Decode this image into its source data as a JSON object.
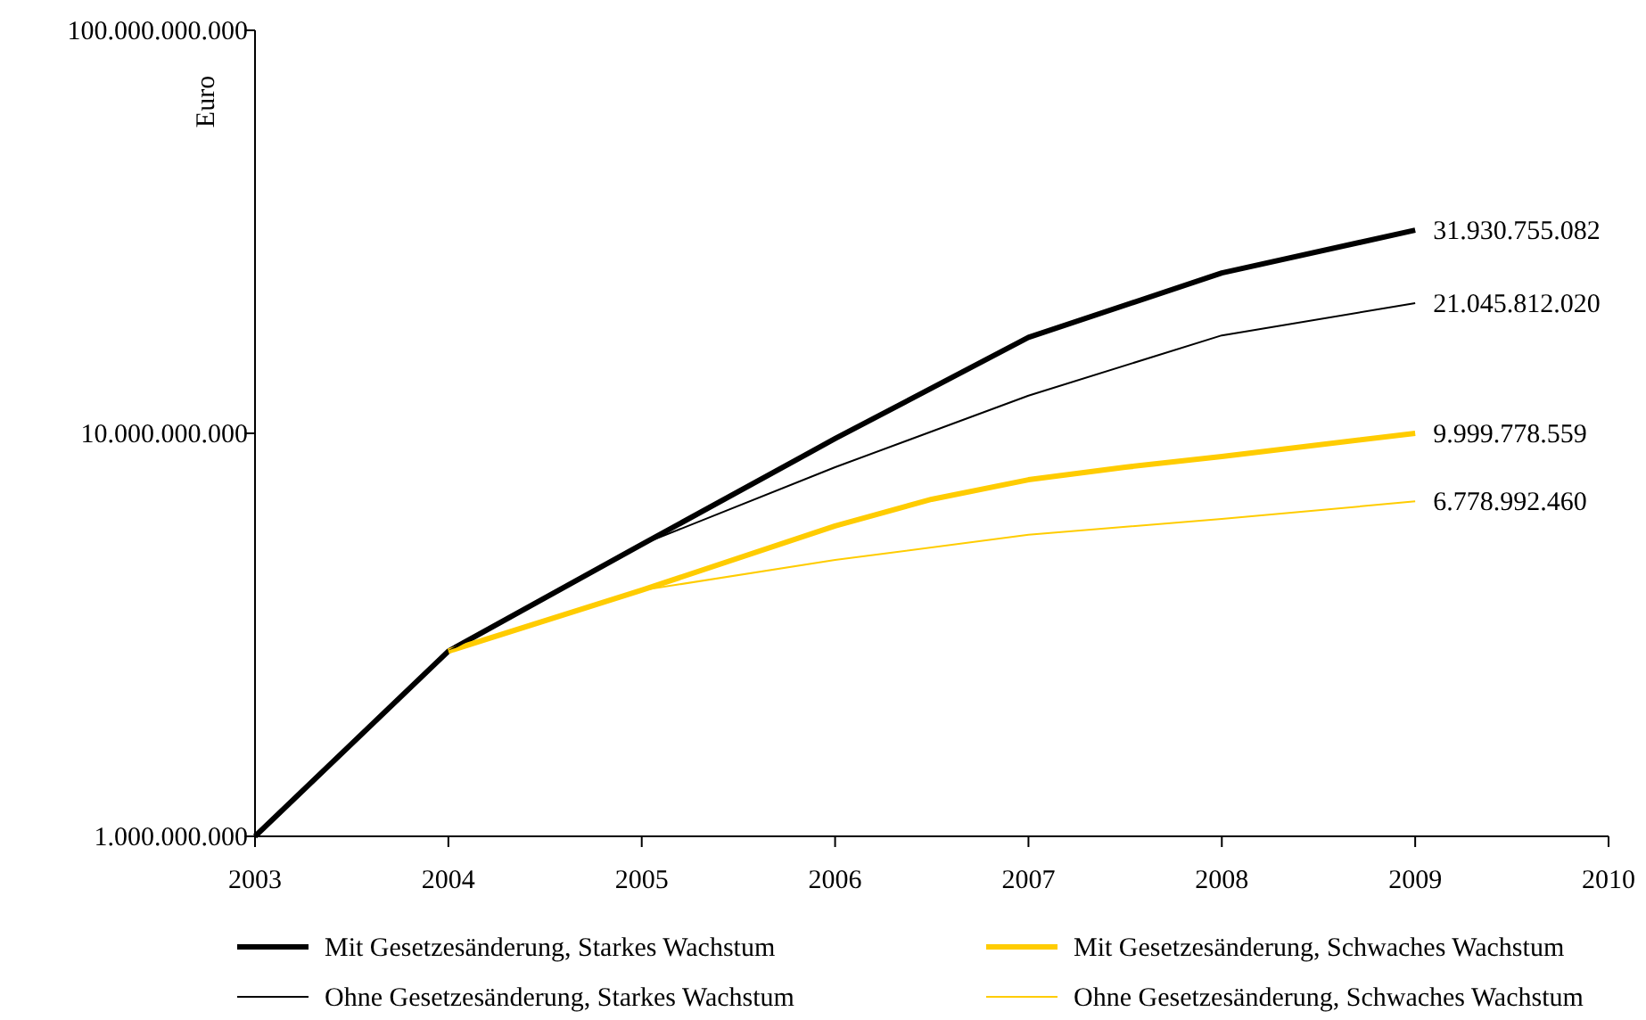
{
  "chart_data": {
    "type": "line",
    "ylabel": "Euro",
    "log": "y",
    "grid": false,
    "legend": "bottom",
    "marker": "none",
    "line_style": "solid",
    "xlim": [
      2003,
      2010
    ],
    "xticks": [
      2003,
      2004,
      2005,
      2006,
      2007,
      2008,
      2009,
      2010
    ],
    "ylim": [
      1000000000,
      100000000000
    ],
    "yticks": [
      {
        "value": 1000000000,
        "label": "1.000.000.000"
      },
      {
        "value": 10000000000,
        "label": "10.000.000.000"
      },
      {
        "value": 100000000000,
        "label": "100.000.000.000"
      }
    ],
    "series": [
      {
        "name": "Mit Gesetzesänderung, Starkes Wachstum",
        "color": "#000000",
        "x": [
          2003,
          2004,
          2005,
          2006,
          2007,
          2008,
          2009
        ],
        "values": [
          1000000000,
          2880000000,
          5300000000,
          9700000000,
          17300000000,
          25000000000,
          31930755082
        ],
        "value_labels": [
          null,
          null,
          null,
          null,
          null,
          null,
          "31.930.755.082"
        ]
      },
      {
        "name": "Mit Gesetzesänderung, Schwaches Wachstum",
        "color": "#ffcc00",
        "x": [
          2004,
          2005,
          2006,
          2006.5,
          2007,
          2007.5,
          2008,
          2009
        ],
        "values": [
          2880000000,
          4080000000,
          5890000000,
          6860000000,
          7670000000,
          8240000000,
          8760000000,
          9999778559
        ],
        "value_labels": [
          null,
          null,
          null,
          null,
          null,
          null,
          null,
          "9.999.778.559"
        ]
      },
      {
        "name": "Ohne Gesetzesänderung, Starkes Wachstum",
        "color": "#000000",
        "x": [
          2004,
          2005,
          2006,
          2007,
          2008,
          2009
        ],
        "values": [
          2880000000,
          5300000000,
          8240000000,
          12400000000,
          17500000000,
          21045812020
        ],
        "value_labels": [
          null,
          null,
          null,
          null,
          null,
          "21.045.812.020"
        ]
      },
      {
        "name": "Ohne Gesetzesänderung, Schwaches Wachstum",
        "color": "#ffcc00",
        "x": [
          2004,
          2005,
          2006,
          2007,
          2008,
          2009
        ],
        "values": [
          2880000000,
          4080000000,
          4850000000,
          5600000000,
          6130000000,
          6778992460
        ],
        "value_labels": [
          null,
          null,
          null,
          null,
          null,
          "6.778.992.460"
        ]
      }
    ]
  }
}
